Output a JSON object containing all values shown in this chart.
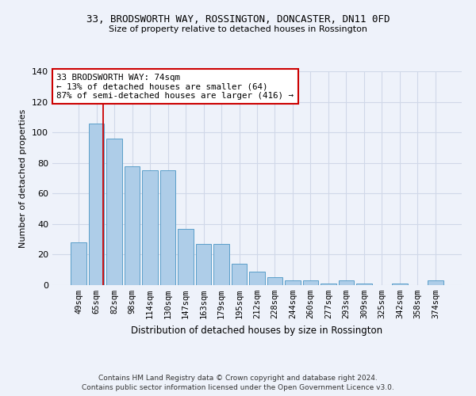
{
  "title_line1": "33, BRODSWORTH WAY, ROSSINGTON, DONCASTER, DN11 0FD",
  "title_line2": "Size of property relative to detached houses in Rossington",
  "xlabel": "Distribution of detached houses by size in Rossington",
  "ylabel": "Number of detached properties",
  "footer_line1": "Contains HM Land Registry data © Crown copyright and database right 2024.",
  "footer_line2": "Contains public sector information licensed under the Open Government Licence v3.0.",
  "categories": [
    "49sqm",
    "65sqm",
    "82sqm",
    "98sqm",
    "114sqm",
    "130sqm",
    "147sqm",
    "163sqm",
    "179sqm",
    "195sqm",
    "212sqm",
    "228sqm",
    "244sqm",
    "260sqm",
    "277sqm",
    "293sqm",
    "309sqm",
    "325sqm",
    "342sqm",
    "358sqm",
    "374sqm"
  ],
  "values": [
    28,
    106,
    96,
    78,
    75,
    75,
    37,
    27,
    27,
    14,
    9,
    5,
    3,
    3,
    1,
    3,
    1,
    0,
    1,
    0,
    3
  ],
  "bar_color": "#aecde8",
  "bar_edge_color": "#5a9ec9",
  "grid_color": "#d0d8e8",
  "background_color": "#eef2fa",
  "vline_x_index": 1,
  "vline_color": "#cc0000",
  "annotation_text": "33 BRODSWORTH WAY: 74sqm\n← 13% of detached houses are smaller (64)\n87% of semi-detached houses are larger (416) →",
  "annotation_box_color": "#ffffff",
  "annotation_box_edge": "#cc0000",
  "ylim": [
    0,
    140
  ],
  "yticks": [
    0,
    20,
    40,
    60,
    80,
    100,
    120,
    140
  ]
}
